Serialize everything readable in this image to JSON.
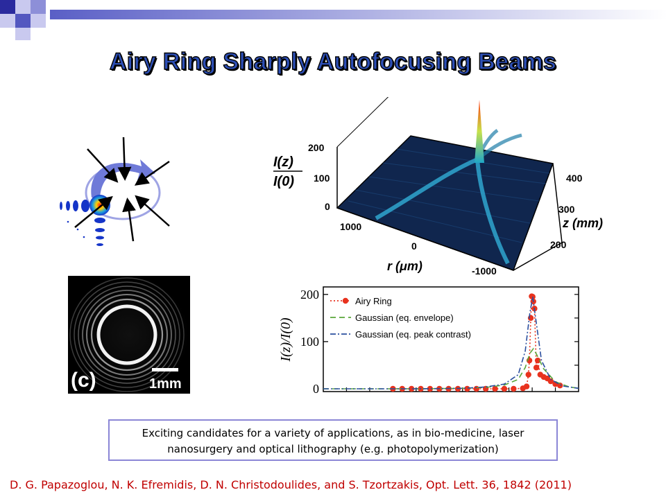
{
  "slide": {
    "title": "Airy Ring Sharply Autofocusing Beams",
    "caption": {
      "line1": "Exciting candidates for a variety of applications, as in bio-medicine, laser",
      "line2": "nanosurgery and optical lithography (e.g. photopolymerization)"
    },
    "reference": "D. G. Papazoglou, N. K. Efremidis, D. N. Christodoulides, and S. Tzortzakis, Opt. Lett. 36, 1842 (2011)"
  },
  "photo": {
    "label": "(c)",
    "scale_label": "1mm"
  },
  "surface_plot": {
    "vertical_label_num": "I(z)",
    "vertical_label_den": "I(0)",
    "vertical_ticks": [
      "200",
      "100",
      "0"
    ],
    "r_label": "r (μm)",
    "r_ticks": [
      "1000",
      "0",
      "-1000"
    ],
    "z_label": "z (mm)",
    "z_ticks": [
      "400",
      "300",
      "200"
    ]
  },
  "colors": {
    "title_fill": "#2d4fb6",
    "caption_border": "#8b86d6",
    "reference_text": "#c00000",
    "airy_series": "#e8321e",
    "gauss_env": "#5aa63a",
    "gauss_peak": "#2a4e9e"
  },
  "chart_data": {
    "type": "line",
    "ylabel": "I(z)/I(0)",
    "ytick_labels": [
      "0",
      "100",
      "200"
    ],
    "ylim": [
      0,
      210
    ],
    "grid": false,
    "legend_position": "top-left",
    "series": [
      {
        "name": "Airy Ring",
        "style": "dotted-markers",
        "points": [
          [
            30,
            0
          ],
          [
            34,
            0
          ],
          [
            38,
            0
          ],
          [
            42,
            0
          ],
          [
            46,
            0
          ],
          [
            50,
            0
          ],
          [
            54,
            0
          ],
          [
            58,
            0
          ],
          [
            62,
            0
          ],
          [
            66,
            0
          ],
          [
            70,
            0
          ],
          [
            74,
            0
          ],
          [
            78,
            0
          ],
          [
            82,
            0
          ],
          [
            86,
            1
          ],
          [
            87.6,
            5
          ],
          [
            88.4,
            30
          ],
          [
            88.8,
            60
          ],
          [
            89.4,
            150
          ],
          [
            89.8,
            196
          ],
          [
            90.2,
            195
          ],
          [
            90.5,
            185
          ],
          [
            91.0,
            170
          ],
          [
            91.8,
            45
          ],
          [
            92.4,
            60
          ],
          [
            93.5,
            30
          ],
          [
            95,
            25
          ],
          [
            96.5,
            22
          ],
          [
            98,
            16
          ],
          [
            100,
            10
          ],
          [
            102,
            7
          ]
        ]
      },
      {
        "name": "Gaussian (eq. envelope)",
        "style": "dashed",
        "points": [
          [
            0,
            0
          ],
          [
            40,
            0
          ],
          [
            60,
            1
          ],
          [
            70,
            3
          ],
          [
            78,
            8
          ],
          [
            84,
            20
          ],
          [
            87,
            45
          ],
          [
            89,
            75
          ],
          [
            90.5,
            85
          ],
          [
            92,
            72
          ],
          [
            95,
            42
          ],
          [
            100,
            15
          ],
          [
            106,
            4
          ],
          [
            110,
            1
          ]
        ]
      },
      {
        "name": "Gaussian (eq. peak contrast)",
        "style": "dash-dot",
        "points": [
          [
            0,
            0
          ],
          [
            40,
            0
          ],
          [
            60,
            1
          ],
          [
            70,
            4
          ],
          [
            78,
            10
          ],
          [
            84,
            30
          ],
          [
            87,
            80
          ],
          [
            89,
            160
          ],
          [
            90.2,
            195
          ],
          [
            91.5,
            150
          ],
          [
            94,
            60
          ],
          [
            98,
            20
          ],
          [
            103,
            6
          ],
          [
            110,
            1
          ]
        ]
      }
    ]
  }
}
